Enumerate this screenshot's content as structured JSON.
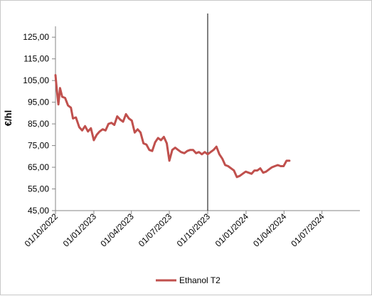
{
  "chart_data": {
    "type": "line",
    "title": "",
    "xlabel": "",
    "ylabel": "€/hl",
    "ylim": [
      45,
      130
    ],
    "y_ticks": [
      "45,00",
      "55,00",
      "65,00",
      "75,00",
      "85,00",
      "95,00",
      "105,00",
      "115,00",
      "125,00"
    ],
    "y_tick_values": [
      45,
      55,
      65,
      75,
      85,
      95,
      105,
      115,
      125
    ],
    "x_tick_labels": [
      "01/10/2022",
      "01/01/2023",
      "01/04/2023",
      "01/07/2023",
      "01/10/2023",
      "01/01/2024",
      "01/04/2024",
      "01/07/2024"
    ],
    "x_tick_dates": [
      "2022-10-01",
      "2023-01-01",
      "2023-04-01",
      "2023-07-01",
      "2023-10-01",
      "2024-01-01",
      "2024-04-01",
      "2024-07-01"
    ],
    "xlim": [
      "2022-10-01",
      "2024-09-30"
    ],
    "grid": false,
    "vertical_marker_date": "2023-10-01",
    "legend_position": "bottom",
    "series": [
      {
        "name": "Ethanol T2",
        "color": "#c0504d",
        "points": [
          [
            "2022-10-01",
            107.5
          ],
          [
            "2022-10-04",
            101.0
          ],
          [
            "2022-10-08",
            94.0
          ],
          [
            "2022-10-12",
            101.5
          ],
          [
            "2022-10-17",
            97.5
          ],
          [
            "2022-10-24",
            97.0
          ],
          [
            "2022-10-31",
            93.5
          ],
          [
            "2022-11-07",
            92.5
          ],
          [
            "2022-11-12",
            87.5
          ],
          [
            "2022-11-19",
            88.0
          ],
          [
            "2022-11-27",
            83.5
          ],
          [
            "2022-12-04",
            82.0
          ],
          [
            "2022-12-11",
            84.0
          ],
          [
            "2022-12-18",
            81.5
          ],
          [
            "2022-12-25",
            83.0
          ],
          [
            "2023-01-01",
            77.5
          ],
          [
            "2023-01-08",
            80.0
          ],
          [
            "2023-01-15",
            81.5
          ],
          [
            "2023-01-22",
            82.5
          ],
          [
            "2023-01-29",
            82.0
          ],
          [
            "2023-02-05",
            85.0
          ],
          [
            "2023-02-12",
            85.5
          ],
          [
            "2023-02-19",
            84.5
          ],
          [
            "2023-02-26",
            88.5
          ],
          [
            "2023-03-05",
            87.0
          ],
          [
            "2023-03-12",
            86.0
          ],
          [
            "2023-03-19",
            89.5
          ],
          [
            "2023-03-26",
            87.5
          ],
          [
            "2023-04-02",
            86.5
          ],
          [
            "2023-04-09",
            81.0
          ],
          [
            "2023-04-16",
            82.5
          ],
          [
            "2023-04-23",
            81.0
          ],
          [
            "2023-04-30",
            76.0
          ],
          [
            "2023-05-07",
            75.5
          ],
          [
            "2023-05-14",
            73.0
          ],
          [
            "2023-05-21",
            72.5
          ],
          [
            "2023-05-28",
            76.5
          ],
          [
            "2023-06-04",
            78.5
          ],
          [
            "2023-06-11",
            77.5
          ],
          [
            "2023-06-18",
            79.0
          ],
          [
            "2023-06-25",
            76.0
          ],
          [
            "2023-07-01",
            68.0
          ],
          [
            "2023-07-08",
            73.0
          ],
          [
            "2023-07-15",
            74.0
          ],
          [
            "2023-07-22",
            73.0
          ],
          [
            "2023-07-29",
            72.0
          ],
          [
            "2023-08-06",
            71.5
          ],
          [
            "2023-08-13",
            72.5
          ],
          [
            "2023-08-20",
            73.0
          ],
          [
            "2023-08-27",
            73.0
          ],
          [
            "2023-09-03",
            71.5
          ],
          [
            "2023-09-10",
            72.0
          ],
          [
            "2023-09-17",
            71.0
          ],
          [
            "2023-09-24",
            72.0
          ],
          [
            "2023-10-01",
            71.0
          ],
          [
            "2023-10-08",
            72.0
          ],
          [
            "2023-10-15",
            73.0
          ],
          [
            "2023-10-22",
            74.5
          ],
          [
            "2023-10-29",
            71.0
          ],
          [
            "2023-11-05",
            69.0
          ],
          [
            "2023-11-12",
            66.0
          ],
          [
            "2023-11-19",
            65.5
          ],
          [
            "2023-11-26",
            64.5
          ],
          [
            "2023-12-03",
            63.5
          ],
          [
            "2023-12-10",
            60.5
          ],
          [
            "2023-12-17",
            61.0
          ],
          [
            "2023-12-24",
            62.0
          ],
          [
            "2023-12-31",
            63.0
          ],
          [
            "2024-01-07",
            62.5
          ],
          [
            "2024-01-14",
            62.0
          ],
          [
            "2024-01-21",
            63.5
          ],
          [
            "2024-01-28",
            63.5
          ],
          [
            "2024-02-04",
            64.5
          ],
          [
            "2024-02-11",
            62.5
          ],
          [
            "2024-02-18",
            63.0
          ],
          [
            "2024-02-25",
            64.0
          ],
          [
            "2024-03-03",
            65.0
          ],
          [
            "2024-03-10",
            65.5
          ],
          [
            "2024-03-17",
            66.0
          ],
          [
            "2024-03-24",
            65.5
          ],
          [
            "2024-03-31",
            65.5
          ],
          [
            "2024-04-07",
            68.0
          ],
          [
            "2024-04-14",
            68.0
          ]
        ]
      }
    ]
  }
}
